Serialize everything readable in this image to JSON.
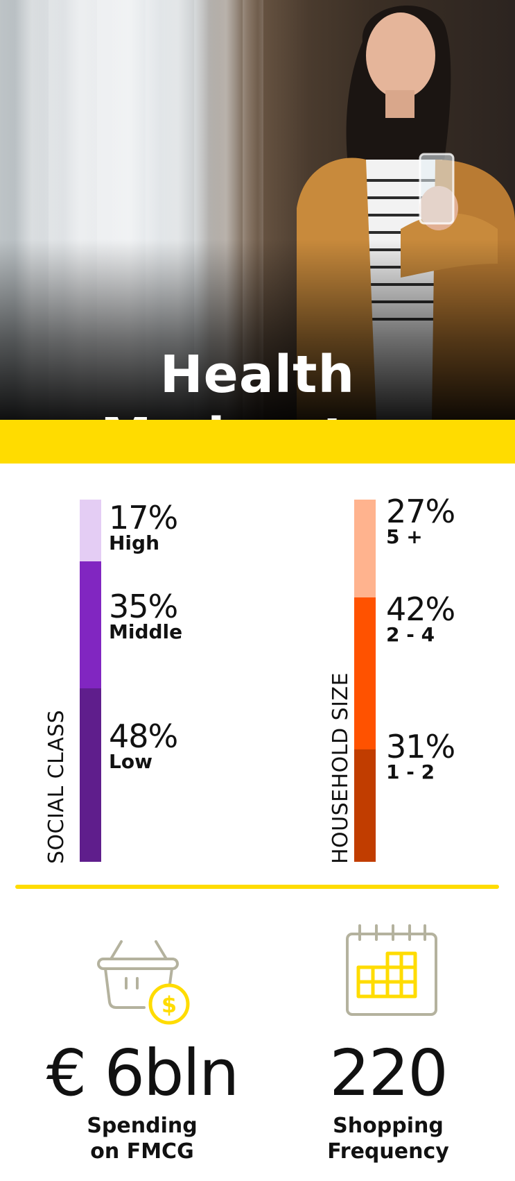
{
  "hero": {
    "title": "Health Moderates"
  },
  "colors": {
    "accent_yellow": "#ffdc00",
    "social_high": "#e4cdf4",
    "social_middle": "#8126c1",
    "social_low": "#5f1e8c",
    "household_5plus": "#ffb38e",
    "household_2_4": "#ff5200",
    "household_1_2": "#c13d00",
    "icon_gray": "#b4b29e"
  },
  "social_class": {
    "title": "SOCIAL CLASS",
    "segments": [
      {
        "pct": "17%",
        "label": "High",
        "value": 17,
        "color": "#e4cdf4"
      },
      {
        "pct": "35%",
        "label": "Middle",
        "value": 35,
        "color": "#8126c1"
      },
      {
        "pct": "48%",
        "label": "Low",
        "value": 48,
        "color": "#5f1e8c"
      }
    ]
  },
  "household_size": {
    "title": "HOUSEHOLD SIZE",
    "segments": [
      {
        "pct": "27%",
        "label": "5 +",
        "value": 27,
        "color": "#ffb38e"
      },
      {
        "pct": "42%",
        "label": "2 - 4",
        "value": 42,
        "color": "#ff5200"
      },
      {
        "pct": "31%",
        "label": "1 - 2",
        "value": 31,
        "color": "#c13d00"
      }
    ]
  },
  "stats": {
    "spending": {
      "icon": "shopping-basket-dollar-icon",
      "value": "€ 6bln",
      "caption_line1": "Spending",
      "caption_line2": "on FMCG"
    },
    "frequency": {
      "icon": "calendar-icon",
      "value": "220",
      "caption_line1": "Shopping",
      "caption_line2": "Frequency"
    }
  }
}
